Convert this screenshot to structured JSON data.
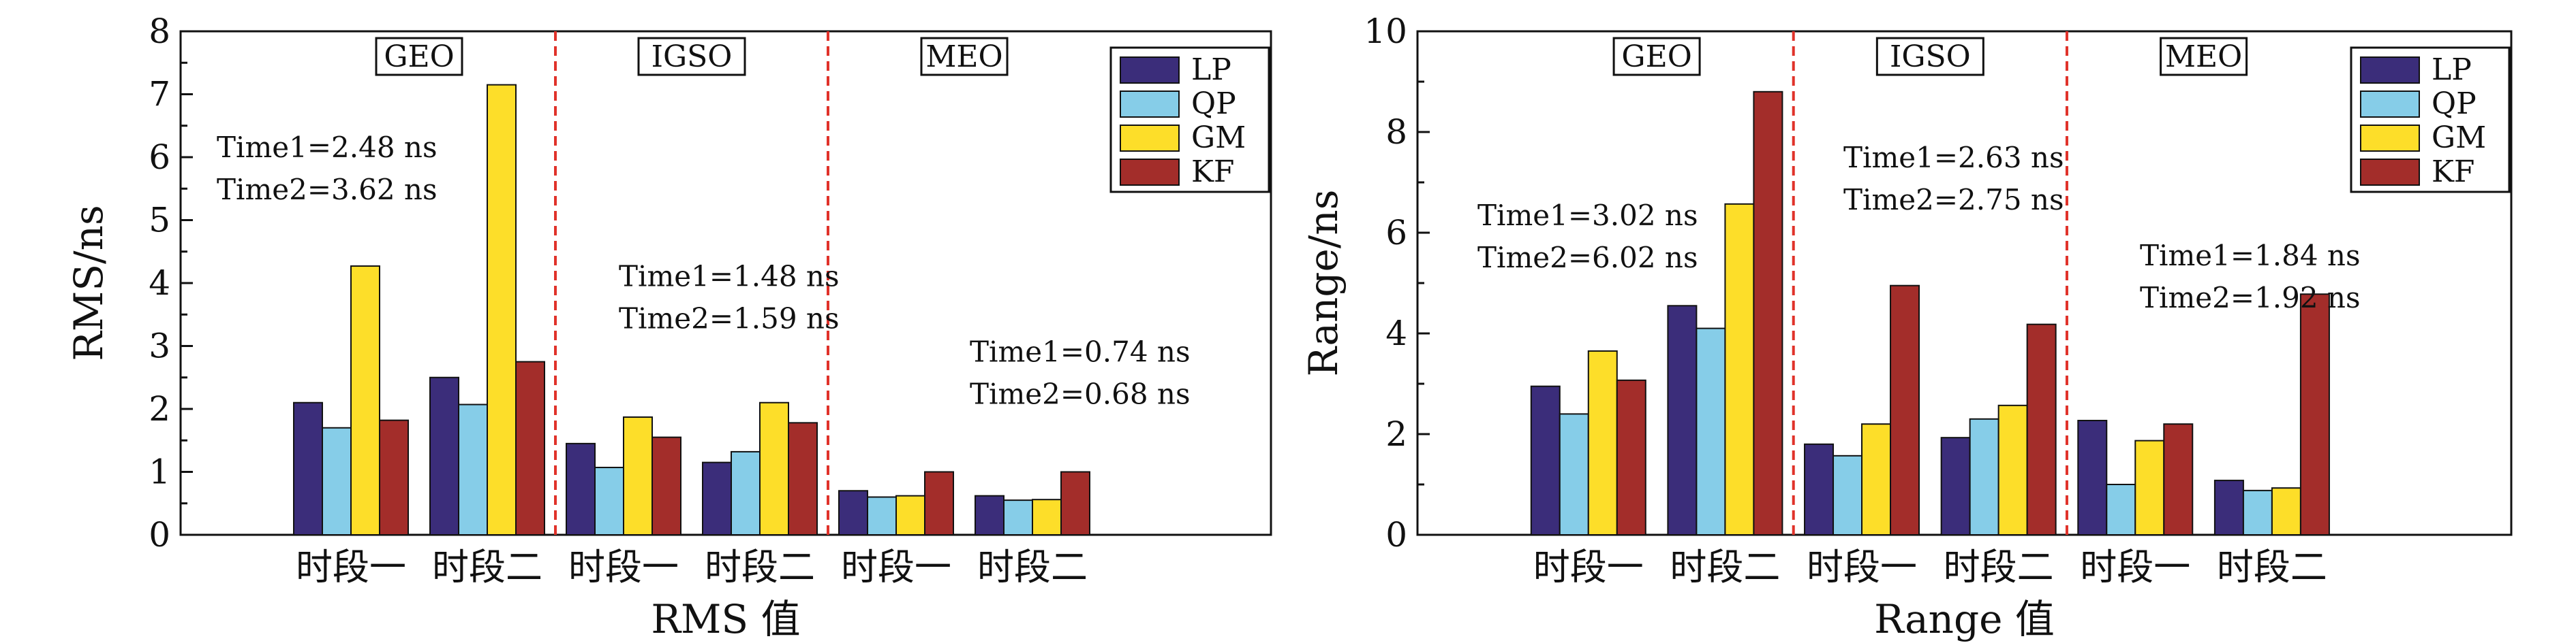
{
  "colors": {
    "LP": "#3b2d7a",
    "QP": "#86cde8",
    "GM": "#fdde29",
    "KF": "#a32d2a",
    "divider": "#e0322a"
  },
  "chart_data": [
    {
      "type": "bar",
      "xlabel": "RMS 值",
      "ylabel": "RMS/ns",
      "ylim": [
        0,
        8
      ],
      "yticks": [
        0,
        1,
        2,
        3,
        4,
        5,
        6,
        7,
        8
      ],
      "categories": [
        "时段一",
        "时段二",
        "时段一",
        "时段二",
        "时段一",
        "时段二"
      ],
      "groups": [
        {
          "label": "GEO",
          "annotation": [
            "Time1=2.48 ns",
            "Time2=3.62 ns"
          ],
          "ann_y": 6.0
        },
        {
          "label": "IGSO",
          "annotation": [
            "Time1=1.48 ns",
            "Time2=1.59 ns"
          ],
          "ann_y": 3.95
        },
        {
          "label": "MEO",
          "annotation": [
            "Time1=0.74 ns",
            "Time2=0.68 ns"
          ],
          "ann_y": 2.75
        }
      ],
      "legend": [
        "LP",
        "QP",
        "GM",
        "KF"
      ],
      "series": [
        {
          "name": "LP",
          "values": [
            2.1,
            2.5,
            1.45,
            1.15,
            0.7,
            0.62
          ]
        },
        {
          "name": "QP",
          "values": [
            1.7,
            2.07,
            1.07,
            1.32,
            0.6,
            0.55
          ]
        },
        {
          "name": "GM",
          "values": [
            4.27,
            7.15,
            1.87,
            2.1,
            0.62,
            0.56
          ]
        },
        {
          "name": "KF",
          "values": [
            1.82,
            2.75,
            1.55,
            1.78,
            1.0,
            1.0
          ]
        }
      ]
    },
    {
      "type": "bar",
      "xlabel": "Range 值",
      "ylabel": "Range/ns",
      "ylim": [
        0,
        10
      ],
      "yticks": [
        0,
        2,
        4,
        6,
        8,
        10
      ],
      "categories": [
        "时段一",
        "时段二",
        "时段一",
        "时段二",
        "时段一",
        "时段二"
      ],
      "groups": [
        {
          "label": "GEO",
          "annotation": [
            "Time1=3.02 ns",
            "Time2=6.02 ns"
          ],
          "ann_y": 6.15
        },
        {
          "label": "IGSO",
          "annotation": [
            "Time1=2.63 ns",
            "Time2=2.75 ns"
          ],
          "ann_y": 7.3
        },
        {
          "label": "MEO",
          "annotation": [
            "Time1=1.84 ns",
            "Time2=1.92 ns"
          ],
          "ann_y": 5.35
        }
      ],
      "legend": [
        "LP",
        "QP",
        "GM",
        "KF"
      ],
      "series": [
        {
          "name": "LP",
          "values": [
            2.95,
            4.55,
            1.8,
            1.93,
            2.27,
            1.08
          ]
        },
        {
          "name": "QP",
          "values": [
            2.4,
            4.1,
            1.57,
            2.3,
            1.0,
            0.88
          ]
        },
        {
          "name": "GM",
          "values": [
            3.65,
            6.57,
            2.2,
            2.57,
            1.87,
            0.93
          ]
        },
        {
          "name": "KF",
          "values": [
            3.07,
            8.8,
            4.95,
            4.18,
            2.2,
            4.78
          ]
        }
      ]
    }
  ]
}
